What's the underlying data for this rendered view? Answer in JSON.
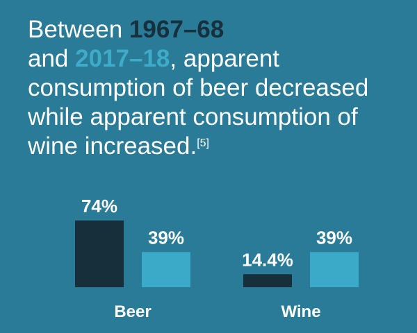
{
  "chart_data": {
    "type": "bar",
    "title_start": "Between",
    "title_middle": "and",
    "title_end": ", apparent consumption of beer decreased while apparent consumption of wine increased.",
    "footnote": "[5]",
    "categories": [
      "Beer",
      "Wine"
    ],
    "series": [
      {
        "name": "1967–68",
        "color": "#172e3b",
        "values": [
          74,
          14.4
        ],
        "value_labels": [
          "74%",
          "14.4%"
        ]
      },
      {
        "name": "2017–18",
        "color": "#3ba9c8",
        "values": [
          39,
          39
        ],
        "value_labels": [
          "39%",
          "39%"
        ]
      }
    ]
  }
}
